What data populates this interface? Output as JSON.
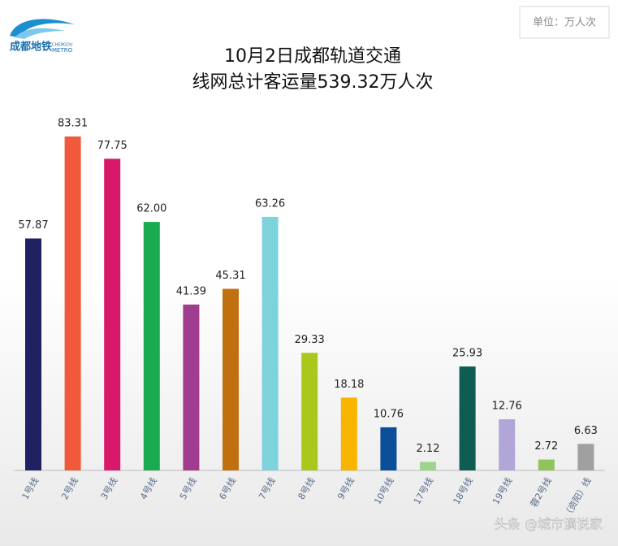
{
  "logo": {
    "name": "成都地铁",
    "en_top": "CHENGDU",
    "en_bottom": "METRO"
  },
  "unit": "单位：万人次",
  "watermark": "头条 @城市演说家",
  "chart_data": {
    "type": "bar",
    "title": [
      "10月2日成都轨道交通",
      "线网总计客运量539.32万人次"
    ],
    "categories": [
      "1号线",
      "2号线",
      "3号线",
      "4号线",
      "5号线",
      "6号线",
      "7号线",
      "8号线",
      "9号线",
      "10号线",
      "17号线",
      "18号线",
      "19号线",
      "蓉2号线",
      "（资阳）线"
    ],
    "values": [
      57.87,
      83.31,
      77.75,
      62.0,
      41.39,
      45.31,
      63.26,
      29.33,
      18.18,
      10.76,
      2.12,
      25.93,
      12.76,
      2.72,
      6.63
    ],
    "value_labels": [
      "57.87",
      "83.31",
      "77.75",
      "62.00",
      "41.39",
      "45.31",
      "63.26",
      "29.33",
      "18.18",
      "10.76",
      "2.12",
      "25.93",
      "12.76",
      "2.72",
      "6.63"
    ],
    "colors": [
      "#1f2160",
      "#f0593a",
      "#d8196b",
      "#1aaa4f",
      "#a03d8e",
      "#c0700e",
      "#7dd3dc",
      "#a8c81c",
      "#f7b500",
      "#0b4e9a",
      "#9fd48f",
      "#0e5c52",
      "#b2a6d9",
      "#8fc35b",
      "#a0a0a0"
    ]
  }
}
